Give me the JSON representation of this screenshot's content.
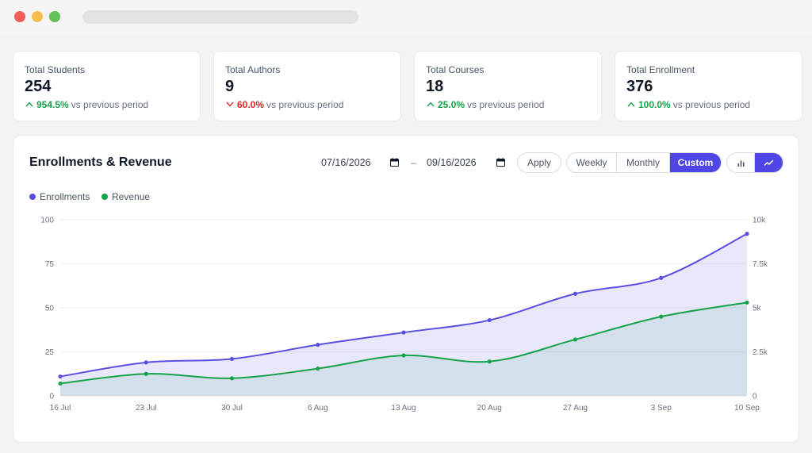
{
  "stats": [
    {
      "label": "Total Students",
      "value": "254",
      "direction": "up",
      "change": "954.5%",
      "suffix": "vs previous period"
    },
    {
      "label": "Total Authors",
      "value": "9",
      "direction": "down",
      "change": "60.0%",
      "suffix": "vs previous period"
    },
    {
      "label": "Total Courses",
      "value": "18",
      "direction": "up",
      "change": "25.0%",
      "suffix": "vs previous period"
    },
    {
      "label": "Total Enrollment",
      "value": "376",
      "direction": "up",
      "change": "100.0%",
      "suffix": "vs previous period"
    }
  ],
  "panel": {
    "title": "Enrollments & Revenue",
    "date_from": "07/16/2026",
    "date_to": "09/16/2026",
    "separator": "–",
    "apply_label": "Apply",
    "period_options": [
      "Weekly",
      "Monthly",
      "Custom"
    ],
    "selected_period": "Custom",
    "chart_type_options": [
      "bar-chart-icon",
      "line-chart-icon"
    ],
    "selected_chart_type": "line-chart-icon"
  },
  "colors": {
    "accent": "#4f46e5",
    "enrollments": "#5b4fe0",
    "revenue": "#16a34a",
    "up": "#16a34a",
    "down": "#dc2626"
  },
  "chart_data": {
    "type": "area",
    "categories": [
      "16 Jul",
      "23 Jul",
      "30 Jul",
      "6 Aug",
      "13 Aug",
      "20 Aug",
      "27 Aug",
      "3 Sep",
      "10 Sep"
    ],
    "series": [
      {
        "name": "Enrollments",
        "axis": "left",
        "values": [
          11,
          19,
          21,
          29,
          36,
          43,
          58,
          67,
          92
        ]
      },
      {
        "name": "Revenue",
        "axis": "right",
        "values": [
          700,
          1250,
          1000,
          1550,
          2300,
          1950,
          3200,
          4500,
          5300
        ]
      }
    ],
    "y_left": {
      "range": [
        0,
        100
      ],
      "ticks": [
        "0",
        "25",
        "50",
        "75",
        "100"
      ]
    },
    "y_right": {
      "range": [
        0,
        10000
      ],
      "ticks": [
        "0",
        "2.5k",
        "5k",
        "7.5k",
        "10k"
      ]
    },
    "grid": true,
    "legend": "top-left"
  }
}
